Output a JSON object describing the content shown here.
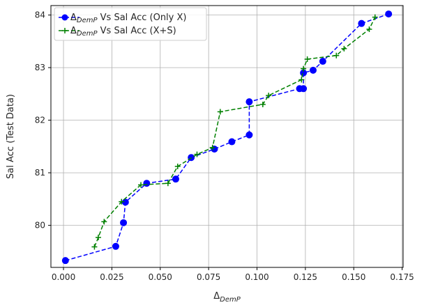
{
  "chart_data": {
    "type": "line",
    "xlabel": "Δ",
    "xlabel_sub": "DemP",
    "ylabel": "Sal Acc (Test Data)",
    "xlim": [
      -0.0065,
      0.1755
    ],
    "ylim": [
      79.2,
      84.18
    ],
    "xticks": [
      0.0,
      0.025,
      0.05,
      0.075,
      0.1,
      0.125,
      0.15,
      0.175
    ],
    "xtick_labels": [
      "0.000",
      "0.025",
      "0.050",
      "0.075",
      "0.100",
      "0.125",
      "0.150",
      "0.175"
    ],
    "yticks": [
      80,
      81,
      82,
      83,
      84
    ],
    "ytick_labels": [
      "80",
      "81",
      "82",
      "83",
      "84"
    ],
    "grid": true,
    "legend_position": "top-left",
    "series": [
      {
        "legend_main": "Δ",
        "legend_sub": "DemP",
        "legend_rest": " Vs Sal Acc (Only X)",
        "color": "#0000ff",
        "marker": "circle",
        "linestyle": "dashed",
        "x": [
          0.001,
          0.027,
          0.031,
          0.032,
          0.043,
          0.058,
          0.066,
          0.078,
          0.087,
          0.096,
          0.096,
          0.122,
          0.124,
          0.124,
          0.129,
          0.134,
          0.154,
          0.168
        ],
        "y": [
          79.33,
          79.6,
          80.05,
          80.44,
          80.8,
          80.88,
          81.29,
          81.45,
          81.59,
          81.72,
          82.35,
          82.6,
          82.6,
          82.9,
          82.95,
          83.12,
          83.84,
          84.02
        ]
      },
      {
        "legend_main": "Δ",
        "legend_sub": "DemP",
        "legend_rest": " Vs Sal Acc (X+S)",
        "color": "#008000",
        "marker": "plus",
        "linestyle": "dashed",
        "x": [
          0.016,
          0.018,
          0.021,
          0.03,
          0.04,
          0.054,
          0.059,
          0.069,
          0.077,
          0.081,
          0.103,
          0.106,
          0.123,
          0.124,
          0.126,
          0.141,
          0.145,
          0.158,
          0.161
        ],
        "y": [
          79.59,
          79.77,
          80.07,
          80.45,
          80.77,
          80.8,
          81.12,
          81.35,
          81.48,
          82.16,
          82.3,
          82.47,
          82.77,
          82.98,
          83.16,
          83.23,
          83.36,
          83.73,
          83.96
        ]
      }
    ]
  }
}
